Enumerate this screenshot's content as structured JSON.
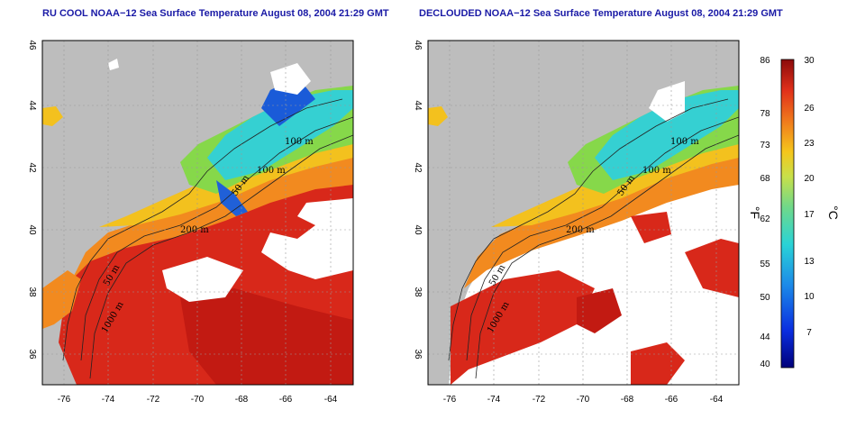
{
  "panels": [
    {
      "title": "RU COOL NOAA−12 Sea Surface Temperature August 08, 2004 21:29 GMT",
      "contour_labels": [
        "100 m",
        "100 m",
        "50 m",
        "200 m",
        "50 m",
        "1000 m"
      ]
    },
    {
      "title": "DECLOUDED NOAA−12 Sea Surface Temperature August 08, 2004 21:29 GMT",
      "contour_labels": [
        "100 m",
        "100 m",
        "50 m",
        "200 m",
        "50 m",
        "1000 m"
      ]
    }
  ],
  "axes": {
    "lon_ticks": [
      "-76",
      "-74",
      "-72",
      "-70",
      "-68",
      "-66",
      "-64"
    ],
    "lat_ticks": [
      "46",
      "44",
      "42",
      "40",
      "38",
      "36"
    ]
  },
  "colorbar": {
    "fahrenheit_unit": "°F",
    "celsius_unit": "°C",
    "fahrenheit_ticks": [
      "86",
      "78",
      "73",
      "68",
      "62",
      "55",
      "50",
      "44",
      "40"
    ],
    "celsius_ticks": [
      "30",
      "26",
      "23",
      "20",
      "17",
      "13",
      "10",
      "7"
    ],
    "range_celsius": [
      4.4,
      30
    ]
  },
  "colors": {
    "land": "#bdbdbd",
    "cloud": "#ffffff",
    "title": "#1a1aa6",
    "warm": "#e8301a",
    "hot": "#c71c12",
    "orange": "#f07a1c",
    "yellow": "#f5c61c",
    "green": "#8fd43c",
    "cyan": "#2ad3d6",
    "blue": "#1a5bd8"
  }
}
